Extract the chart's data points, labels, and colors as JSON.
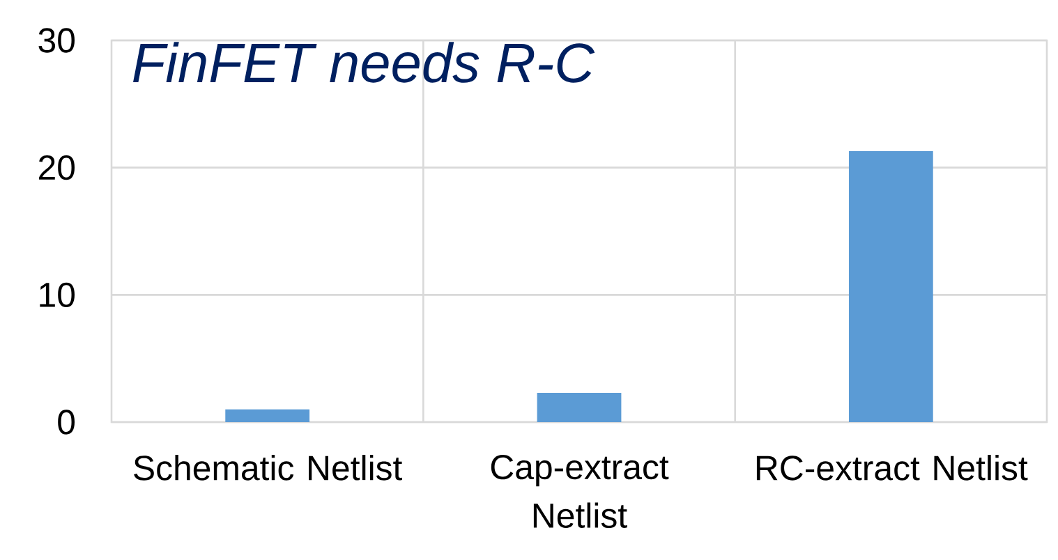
{
  "chart_data": {
    "type": "bar",
    "title": "FinFET needs R-C",
    "categories": [
      "Schematic Netlist",
      "Cap-extract Netlist",
      "RC-extract Netlist"
    ],
    "values": [
      1.0,
      2.3,
      21.3
    ],
    "color": "#5b9bd5",
    "ylim": [
      0,
      30
    ],
    "yticks": [
      0,
      10,
      20,
      30
    ],
    "grid": true
  }
}
